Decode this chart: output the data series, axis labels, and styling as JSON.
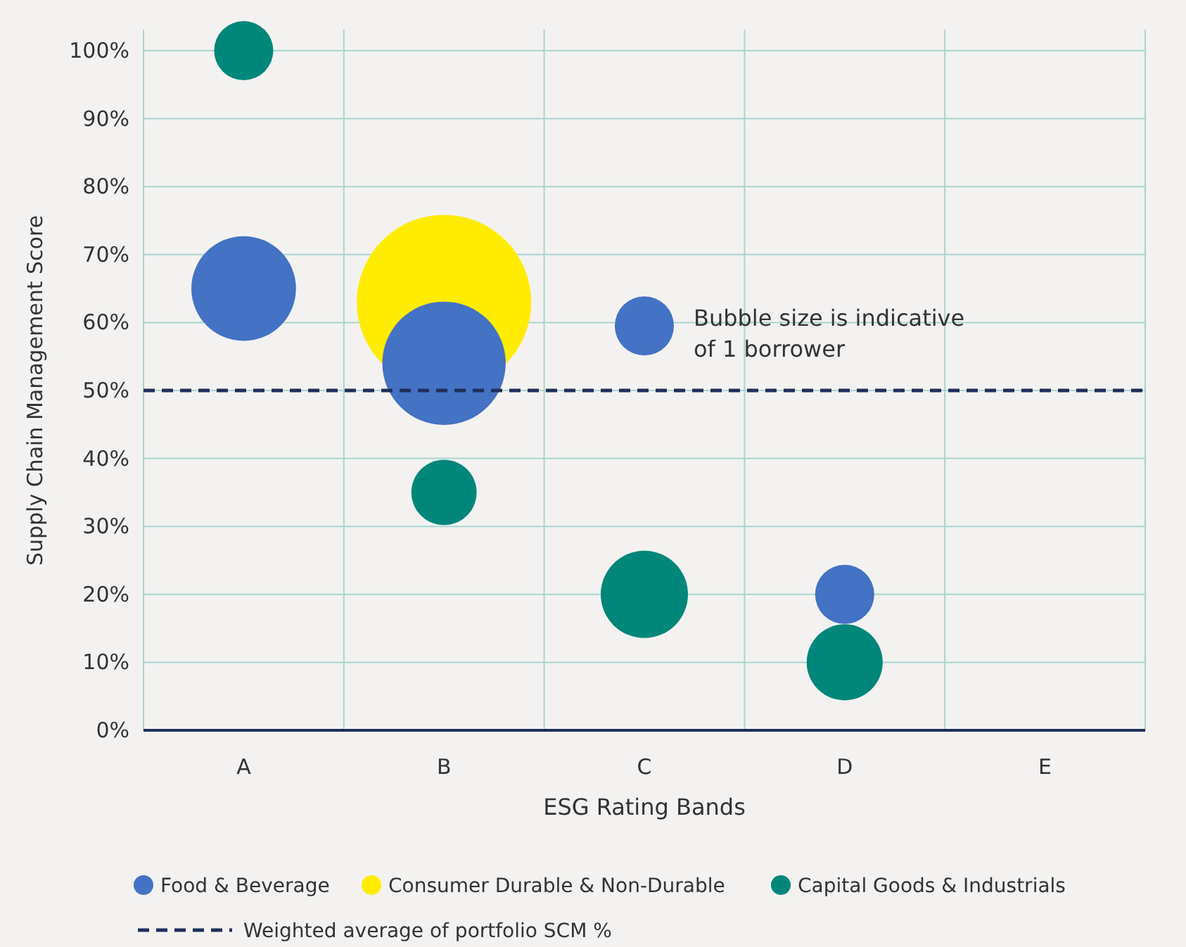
{
  "chart_data": {
    "type": "bubble",
    "xlabel": "ESG Rating Bands",
    "ylabel": "Supply Chain Management Score",
    "categories": [
      "A",
      "B",
      "C",
      "D",
      "E"
    ],
    "ylim": [
      0,
      100
    ],
    "yticks": [
      {
        "value": 0,
        "label": "0%"
      },
      {
        "value": 10,
        "label": "10%"
      },
      {
        "value": 20,
        "label": "20%"
      },
      {
        "value": 30,
        "label": "30%"
      },
      {
        "value": 40,
        "label": "40%"
      },
      {
        "value": 50,
        "label": "50%"
      },
      {
        "value": 60,
        "label": "60%"
      },
      {
        "value": 70,
        "label": "70%"
      },
      {
        "value": 80,
        "label": "80%"
      },
      {
        "value": 90,
        "label": "90%"
      },
      {
        "value": 100,
        "label": "100%"
      }
    ],
    "grid": true,
    "legend": "bottom",
    "series": [
      {
        "name": "Food & Beverage",
        "color": "#4472c4",
        "x": [
          "A",
          "B",
          "C",
          "D"
        ],
        "values": [
          65,
          54,
          59.5,
          20
        ],
        "sizes": [
          0.36,
          0.5,
          0.115,
          0.115
        ]
      },
      {
        "name": "Consumer Durable & Non-Durable",
        "color": "#ffec00",
        "x": [
          "B"
        ],
        "values": [
          63
        ],
        "sizes": [
          1
        ]
      },
      {
        "name": "Capital Goods & Industrials",
        "color": "#00877a",
        "x": [
          "A",
          "B",
          "C",
          "D"
        ],
        "values": [
          100,
          35,
          20,
          10
        ],
        "sizes": [
          0.115,
          0.14,
          0.25,
          0.19
        ]
      }
    ],
    "ref_lines": [
      {
        "axis": "y",
        "value": 50,
        "label": "Weighted average of portfolio SCM %",
        "color": "#1f2f5a",
        "line_style": "dashed"
      }
    ],
    "annotations": [
      "Bubble size is indicative of 1 borrower"
    ]
  }
}
